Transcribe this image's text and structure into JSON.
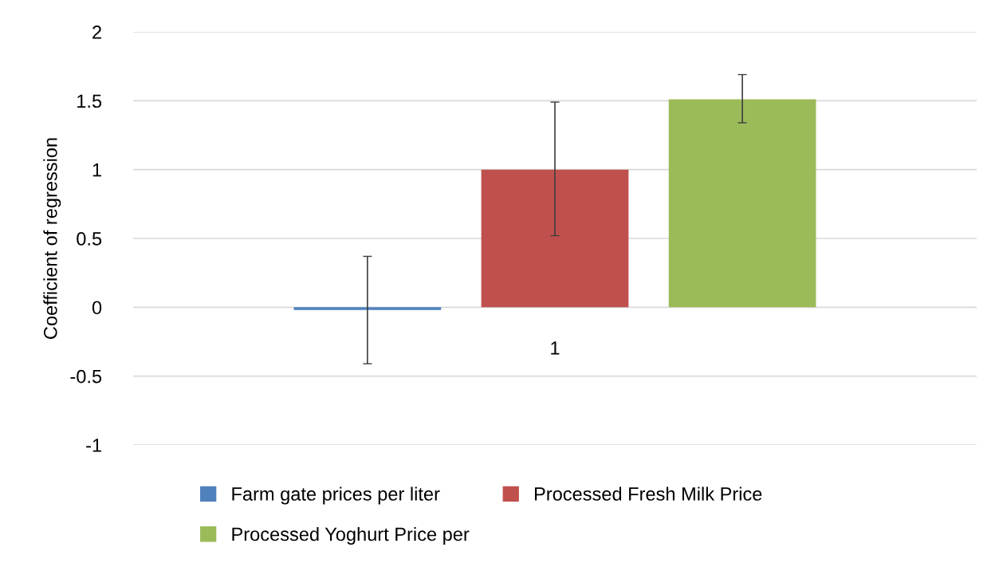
{
  "chart_data": {
    "type": "bar",
    "ylabel": "Coefficient of regression",
    "categories": [
      "1"
    ],
    "series": [
      {
        "name": "Farm gate prices per liter",
        "color": "#4f81bd",
        "values": [
          -0.02
        ],
        "errors": [
          [
            -0.41,
            0.37
          ]
        ]
      },
      {
        "name": "Processed Fresh Milk Price",
        "color": "#c0504d",
        "values": [
          1.0
        ],
        "errors": [
          [
            0.52,
            1.49
          ]
        ]
      },
      {
        "name": "Processed Yoghurt Price per",
        "color": "#9bbb59",
        "values": [
          1.51
        ],
        "errors": [
          [
            1.34,
            1.69
          ]
        ]
      }
    ],
    "ylim": [
      -1,
      2
    ],
    "yticks": [
      -1,
      -0.5,
      0,
      0.5,
      1,
      1.5,
      2
    ],
    "grid": "y",
    "legend": "bottom"
  }
}
